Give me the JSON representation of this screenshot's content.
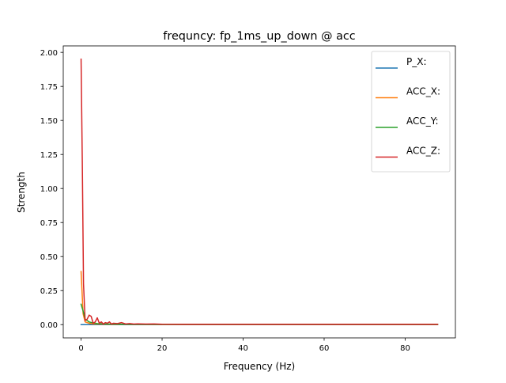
{
  "chart_data": {
    "type": "line",
    "title": "frequncy: fp_1ms_up_down @ acc",
    "xlabel": "Frequency (Hz)",
    "ylabel": "Strength",
    "xlim": [
      -4.4,
      92.4
    ],
    "ylim": [
      -0.0975,
      2.0475
    ],
    "xticks": [
      0,
      20,
      40,
      60,
      80
    ],
    "xtick_labels": [
      "0",
      "20",
      "40",
      "60",
      "80"
    ],
    "yticks": [
      0,
      0.25,
      0.5,
      0.75,
      1.0,
      1.25,
      1.5,
      1.75,
      2.0
    ],
    "ytick_labels": [
      "0.00",
      "0.25",
      "0.50",
      "0.75",
      "1.00",
      "1.25",
      "1.50",
      "1.75",
      "2.00"
    ],
    "grid": false,
    "legend_position": "top-right",
    "series": [
      {
        "name": "P_X:",
        "color": "#1f77b4",
        "x": [
          0,
          10,
          20,
          30,
          40,
          50,
          60,
          70,
          80,
          88
        ],
        "y": [
          0,
          0,
          0,
          0,
          0,
          0,
          0,
          0,
          0,
          0
        ]
      },
      {
        "name": "ACC_X:",
        "color": "#ff7f0e",
        "x": [
          0,
          0.5,
          1.0,
          2.0,
          3.0,
          4.0,
          6.0,
          8.0,
          12.0,
          20.0,
          40.0,
          60.0,
          80.0,
          88.0
        ],
        "y": [
          0.39,
          0.08,
          0.02,
          0.01,
          0.005,
          0.004,
          0.003,
          0.002,
          0.002,
          0.001,
          0.001,
          0.001,
          0.001,
          0.001
        ]
      },
      {
        "name": "ACC_Y:",
        "color": "#2ca02c",
        "x": [
          0,
          0.5,
          1.0,
          1.5,
          2.0,
          3.0,
          4.0,
          6.0,
          8.0,
          12.0,
          20.0,
          40.0,
          60.0,
          80.0,
          88.0
        ],
        "y": [
          0.15,
          0.1,
          0.04,
          0.03,
          0.02,
          0.012,
          0.008,
          0.005,
          0.004,
          0.002,
          0.001,
          0.001,
          0.001,
          0.001,
          0.001
        ]
      },
      {
        "name": "ACC_Z:",
        "color": "#d62728",
        "x": [
          0,
          0.3,
          0.6,
          1.0,
          1.5,
          2.0,
          2.5,
          3.0,
          3.5,
          4.0,
          4.5,
          5.0,
          5.5,
          6.0,
          6.5,
          7.0,
          7.5,
          8.0,
          9.0,
          10.0,
          11.0,
          12.0,
          13.0,
          14.0,
          16.0,
          18.0,
          20.0,
          25.0,
          30.0,
          40.0,
          50.0,
          60.0,
          70.0,
          80.0,
          88.0
        ],
        "y": [
          1.95,
          1.2,
          0.3,
          0.03,
          0.04,
          0.07,
          0.06,
          0.01,
          0.02,
          0.05,
          0.01,
          0.02,
          0.005,
          0.015,
          0.01,
          0.02,
          0.005,
          0.01,
          0.008,
          0.015,
          0.005,
          0.008,
          0.004,
          0.006,
          0.004,
          0.005,
          0.003,
          0.002,
          0.002,
          0.002,
          0.002,
          0.002,
          0.002,
          0.002,
          0.002
        ]
      }
    ]
  }
}
